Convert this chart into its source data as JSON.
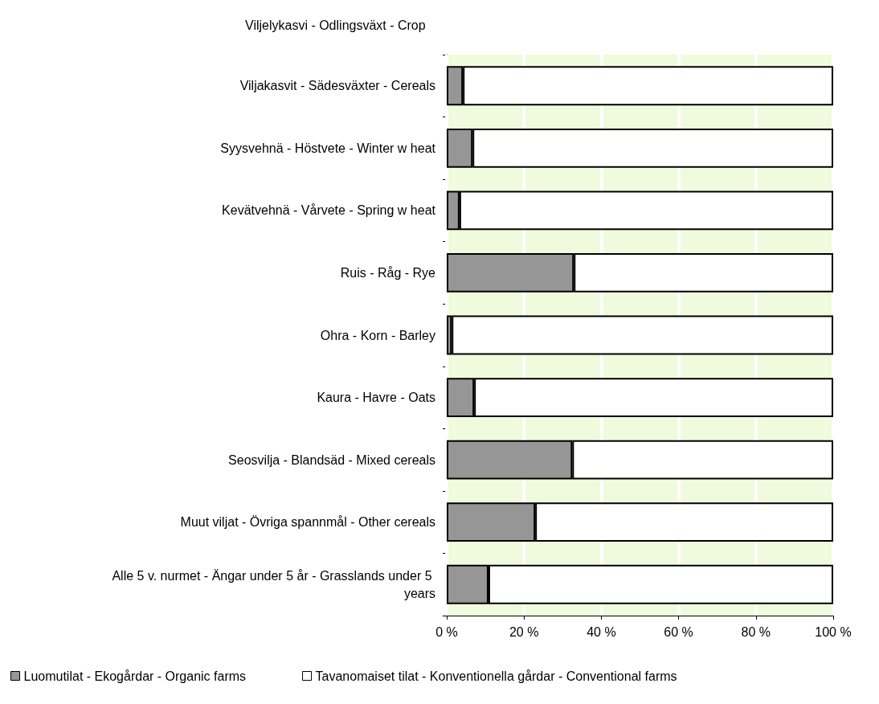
{
  "chart_data": {
    "type": "bar",
    "orientation": "horizontal",
    "stacked": true,
    "title": "Viljelykasvi - Odlingsväxt - Crop",
    "categories": [
      "Viljakasvit - Sädesväxter - Cereals",
      "Syysvehnä - Höstvete - Winter w heat",
      "Kevätvehnä - Vårvete - Spring w heat",
      "Ruis - Råg - Rye",
      "Ohra - Korn - Barley",
      "Kaura - Havre - Oats",
      "Seosvilja - Blandsäd - Mixed cereals",
      "Muut viljat - Övriga spannmål - Other cereals",
      "Alle 5 v. nurmet - Ängar under 5 år - Grasslands under 5 years"
    ],
    "series": [
      {
        "name": "Luomutilat - Ekogårdar - Organic farms",
        "color": "#969696",
        "values": [
          4.2,
          6.7,
          3.3,
          32.9,
          1.3,
          7.1,
          32.5,
          22.9,
          10.8
        ]
      },
      {
        "name": "Tavanomaiset tilat - Konventionella gårdar - Conventional farms",
        "color": "#ffffff",
        "values": [
          95.8,
          93.3,
          96.7,
          67.1,
          98.7,
          92.9,
          67.5,
          77.1,
          89.2
        ]
      }
    ],
    "xlim": [
      0,
      100
    ],
    "xticks": [
      {
        "value": 0,
        "label": "0 %"
      },
      {
        "value": 20,
        "label": "20 %"
      },
      {
        "value": 40,
        "label": "40 %"
      },
      {
        "value": 60,
        "label": "60 %"
      },
      {
        "value": 80,
        "label": "80 %"
      },
      {
        "value": 100,
        "label": "100 %"
      }
    ],
    "bands": [
      {
        "axis": "x",
        "from": 0,
        "to": 100,
        "color": "#f0fadc"
      }
    ],
    "grid": "x",
    "legend": "bottom"
  }
}
